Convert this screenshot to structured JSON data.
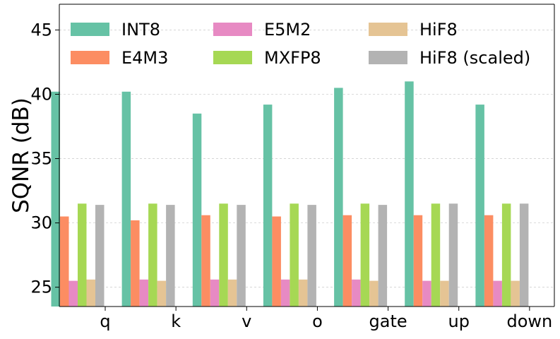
{
  "chart_data": {
    "type": "bar",
    "title": "",
    "xlabel": "",
    "ylabel": "SQNR (dB)",
    "ylim": [
      23.5,
      47
    ],
    "yticks": [
      25,
      30,
      35,
      40,
      45
    ],
    "grid": true,
    "legend_position": "top",
    "categories": [
      "q",
      "k",
      "v",
      "o",
      "gate",
      "up",
      "down"
    ],
    "series": [
      {
        "name": "INT8",
        "color": "#66c2a5",
        "values": [
          40.2,
          40.2,
          38.5,
          39.2,
          40.5,
          41.0,
          39.2
        ]
      },
      {
        "name": "E4M3",
        "color": "#fc8d62",
        "values": [
          30.5,
          30.2,
          30.6,
          30.5,
          30.6,
          30.6,
          30.6
        ]
      },
      {
        "name": "E5M2",
        "color": "#e78ac3",
        "values": [
          25.5,
          25.6,
          25.6,
          25.6,
          25.6,
          25.5,
          25.5
        ]
      },
      {
        "name": "MXFP8",
        "color": "#a6d854",
        "values": [
          31.5,
          31.5,
          31.5,
          31.5,
          31.5,
          31.5,
          31.5
        ]
      },
      {
        "name": "HiF8",
        "color": "#e5c494",
        "values": [
          25.6,
          25.5,
          25.6,
          25.6,
          25.5,
          25.5,
          25.5
        ]
      },
      {
        "name": "HiF8 (scaled)",
        "color": "#b3b3b3",
        "values": [
          31.4,
          31.4,
          31.4,
          31.4,
          31.4,
          31.5,
          31.5
        ]
      }
    ]
  }
}
